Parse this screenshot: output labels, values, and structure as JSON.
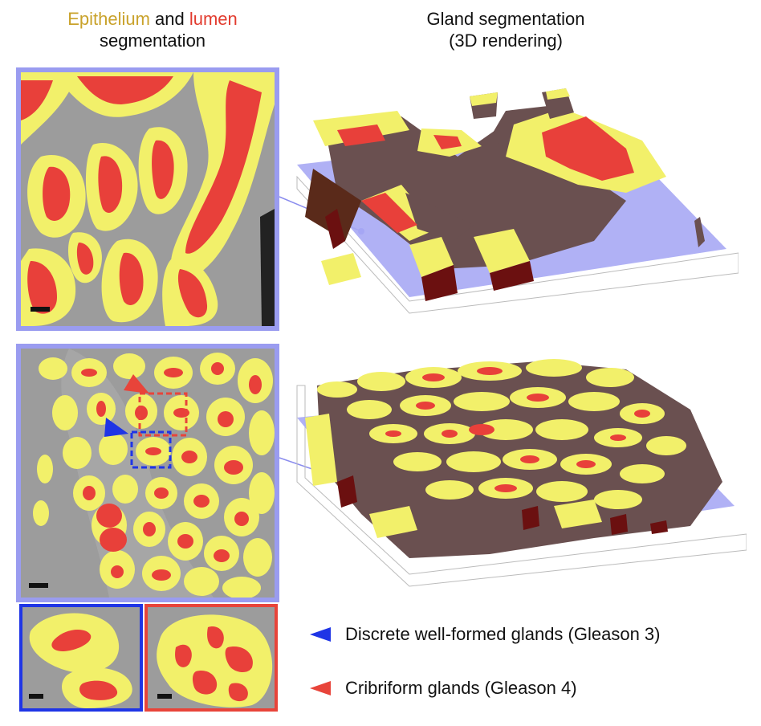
{
  "left_header": {
    "word1": "Epithelium",
    "word2": " and ",
    "word3": "lumen",
    "line2": "segmentation"
  },
  "right_header": {
    "line1": "Gland segmentation",
    "line2": "(3D rendering)"
  },
  "legend": [
    {
      "label": "Discrete well-formed glands (Gleason 3)",
      "color": "#1f35e6"
    },
    {
      "label": "Cribriform glands (Gleason 4)",
      "color": "#e8443a"
    }
  ],
  "colors": {
    "epithelium": "#f2f06a",
    "lumen": "#e8403a",
    "stroma": "#9c9c9c",
    "frame": "#9a9cf0",
    "plane": "#a7a9f4",
    "tissue": "#6a5050",
    "gleason3": "#1f35e6",
    "gleason4": "#e8443a",
    "header_epithelium": "#c9a22b",
    "header_lumen": "#e23b2e"
  }
}
